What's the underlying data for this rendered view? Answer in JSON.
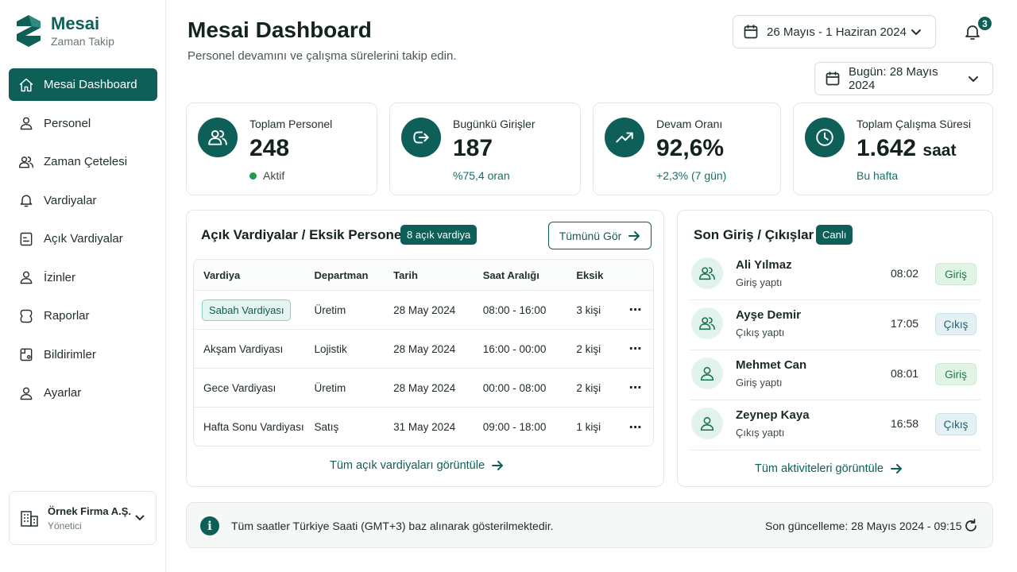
{
  "brand": {
    "title": "Mesai",
    "subtitle": "Zaman Takip",
    "color": "#0d5f58"
  },
  "sidebar": {
    "items": [
      {
        "label": "Mesai Dashboard",
        "icon": "home-icon",
        "active": true
      },
      {
        "label": "Personel",
        "icon": "user-icon"
      },
      {
        "label": "Zaman Çetelesi",
        "icon": "users-icon"
      },
      {
        "label": "Vardiyalar",
        "icon": "bell-icon"
      },
      {
        "label": "Açık Vardiyalar",
        "icon": "list-icon"
      },
      {
        "label": "İzinler",
        "icon": "user-icon"
      },
      {
        "label": "Raporlar",
        "icon": "report-icon"
      },
      {
        "label": "Bildirimler",
        "icon": "notification-icon"
      },
      {
        "label": "Ayarlar",
        "icon": "user-icon"
      }
    ],
    "company": {
      "name": "Örnek Firma A.Ş.",
      "role": "Yönetici"
    }
  },
  "header": {
    "title": "Mesai Dashboard",
    "subtitle": "Personel devamını ve çalışma sürelerini takip edin.",
    "date_range": "26 Mayıs - 1 Haziran 2024",
    "today": "Bugün: 28 Mayıs 2024",
    "notification_count": "3"
  },
  "stats": [
    {
      "label": "Toplam Personel",
      "value": "248",
      "unit": "",
      "sub": "Aktif",
      "icon": "users-icon"
    },
    {
      "label": "Bugünkü Girişler",
      "value": "187",
      "unit": "",
      "sub": "%75,4 oran",
      "icon": "login-arrow-icon"
    },
    {
      "label": "Devam Oranı",
      "value": "92,6%",
      "unit": "",
      "sub": "+2,3% (7 gün)",
      "icon": "trending-up-icon"
    },
    {
      "label": "Toplam Çalışma Süresi",
      "value": "1.642",
      "unit": "saat",
      "sub": "Bu hafta",
      "icon": "clock-icon"
    }
  ],
  "open_shifts": {
    "title": "Açık Vardiyalar / Eksik Personel",
    "badge": "8 açık vardiya",
    "view_all": "Tümünü Gör",
    "columns": [
      "Vardiya",
      "Departman",
      "Tarih",
      "Saat Aralığı",
      "Eksik"
    ],
    "rows": [
      {
        "shift": "Sabah Vardiyası",
        "dept": "Üretim",
        "date": "28 May 2024",
        "hours": "08:00 - 16:00",
        "missing": "3 kişi",
        "highlight": true
      },
      {
        "shift": "Akşam Vardiyası",
        "dept": "Lojistik",
        "date": "28 May 2024",
        "hours": "16:00 - 00:00",
        "missing": "2 kişi"
      },
      {
        "shift": "Gece Vardiyası",
        "dept": "Üretim",
        "date": "28 May 2024",
        "hours": "00:00 - 08:00",
        "missing": "2 kişi"
      },
      {
        "shift": "Hafta Sonu Vardiyası",
        "dept": "Satış",
        "date": "31 May 2024",
        "hours": "09:00 - 18:00",
        "missing": "1 kişi"
      }
    ],
    "more_link": "Tüm açık vardiyaları görüntüle"
  },
  "activity": {
    "title": "Son Giriş / Çıkışlar",
    "badge": "Canlı",
    "items": [
      {
        "name": "Ali Yılmaz",
        "status": "Giriş yaptı",
        "time": "08:02",
        "tag": "Giriş",
        "type": "in"
      },
      {
        "name": "Ayşe Demir",
        "status": "Çıkış yaptı",
        "time": "17:05",
        "tag": "Çıkış",
        "type": "out"
      },
      {
        "name": "Mehmet Can",
        "status": "Giriş yaptı",
        "time": "08:01",
        "tag": "Giriş",
        "type": "in"
      },
      {
        "name": "Zeynep Kaya",
        "status": "Çıkış yaptı",
        "time": "16:58",
        "tag": "Çıkış",
        "type": "out"
      }
    ],
    "more_link": "Tüm aktiviteleri görüntüle"
  },
  "footer": {
    "message": "Tüm saatler Türkiye Saati (GMT+3) baz alınarak gösterilmektedir.",
    "updated": "Son güncelleme: 28 Mayıs 2024 - 09:15"
  }
}
